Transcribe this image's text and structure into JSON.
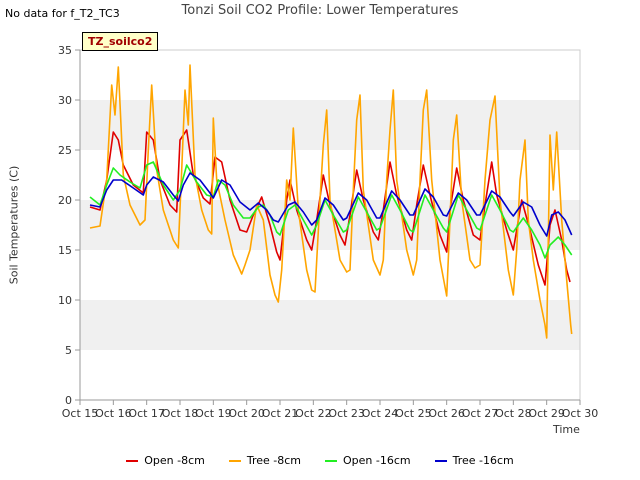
{
  "no_data_text": "No data for f_T2_TC3",
  "tz_label": "TZ_soilco2",
  "colors": {
    "open8": "#e00000",
    "tree8": "#ffa500",
    "open16": "#22ee22",
    "tree16": "#0000cc",
    "band": "#f0f0f0",
    "axis": "#999999"
  },
  "chart_data": {
    "type": "line",
    "title": "Tonzi Soil CO2 Profile: Lower Temperatures",
    "xlabel": "Time",
    "ylabel": "Soil Temperatures (C)",
    "xlim": [
      15,
      30
    ],
    "ylim": [
      0,
      35
    ],
    "x_ticks": [
      "Oct 15",
      "Oct 16",
      "Oct 17",
      "Oct 18",
      "Oct 19",
      "Oct 20",
      "Oct 21",
      "Oct 22",
      "Oct 23",
      "Oct 24",
      "Oct 25",
      "Oct 26",
      "Oct 27",
      "Oct 28",
      "Oct 29",
      "Oct 30"
    ],
    "y_ticks": [
      0,
      5,
      10,
      15,
      20,
      25,
      30,
      35
    ],
    "legend_position": "bottom",
    "series": [
      {
        "name": "Open -8cm",
        "color_key": "open8",
        "points": [
          [
            15.3,
            19.3
          ],
          [
            15.6,
            19.0
          ],
          [
            15.8,
            22.0
          ],
          [
            16.0,
            26.8
          ],
          [
            16.15,
            26.0
          ],
          [
            16.3,
            23.5
          ],
          [
            16.6,
            21.5
          ],
          [
            16.9,
            20.7
          ],
          [
            17.0,
            26.8
          ],
          [
            17.2,
            26.0
          ],
          [
            17.4,
            22.0
          ],
          [
            17.7,
            19.5
          ],
          [
            17.9,
            18.8
          ],
          [
            18.0,
            26.0
          ],
          [
            18.2,
            27.0
          ],
          [
            18.4,
            22.5
          ],
          [
            18.7,
            20.2
          ],
          [
            18.9,
            19.6
          ],
          [
            19.05,
            24.3
          ],
          [
            19.25,
            23.8
          ],
          [
            19.5,
            20.0
          ],
          [
            19.8,
            17.0
          ],
          [
            20.0,
            16.8
          ],
          [
            20.2,
            18.5
          ],
          [
            20.45,
            20.3
          ],
          [
            20.7,
            17.5
          ],
          [
            20.9,
            14.8
          ],
          [
            21.0,
            14.0
          ],
          [
            21.2,
            20.0
          ],
          [
            21.3,
            22.0
          ],
          [
            21.5,
            19.0
          ],
          [
            21.8,
            16.0
          ],
          [
            21.95,
            15.0
          ],
          [
            22.1,
            18.0
          ],
          [
            22.3,
            22.5
          ],
          [
            22.5,
            19.5
          ],
          [
            22.8,
            16.5
          ],
          [
            22.95,
            15.5
          ],
          [
            23.1,
            18.5
          ],
          [
            23.3,
            23.0
          ],
          [
            23.5,
            20.0
          ],
          [
            23.8,
            16.8
          ],
          [
            23.95,
            16.0
          ],
          [
            24.1,
            19.0
          ],
          [
            24.3,
            23.8
          ],
          [
            24.5,
            20.5
          ],
          [
            24.8,
            17.0
          ],
          [
            24.95,
            16.0
          ],
          [
            25.1,
            19.5
          ],
          [
            25.3,
            23.5
          ],
          [
            25.5,
            20.5
          ],
          [
            25.8,
            16.5
          ],
          [
            26.0,
            14.8
          ],
          [
            26.1,
            19.0
          ],
          [
            26.3,
            23.2
          ],
          [
            26.5,
            20.0
          ],
          [
            26.8,
            16.5
          ],
          [
            27.0,
            16.0
          ],
          [
            27.15,
            19.5
          ],
          [
            27.35,
            23.8
          ],
          [
            27.5,
            20.5
          ],
          [
            27.8,
            17.0
          ],
          [
            28.0,
            15.0
          ],
          [
            28.1,
            17.0
          ],
          [
            28.25,
            20.0
          ],
          [
            28.5,
            17.0
          ],
          [
            28.75,
            13.5
          ],
          [
            28.95,
            11.5
          ],
          [
            29.1,
            17.5
          ],
          [
            29.25,
            19.0
          ],
          [
            29.45,
            16.0
          ],
          [
            29.6,
            13.0
          ],
          [
            29.7,
            11.8
          ]
        ]
      },
      {
        "name": "Tree -8cm",
        "color_key": "tree8",
        "points": [
          [
            15.3,
            17.2
          ],
          [
            15.6,
            17.4
          ],
          [
            15.8,
            22.0
          ],
          [
            15.95,
            31.5
          ],
          [
            16.05,
            28.5
          ],
          [
            16.15,
            33.3
          ],
          [
            16.3,
            22.5
          ],
          [
            16.5,
            19.5
          ],
          [
            16.8,
            17.5
          ],
          [
            16.95,
            18.0
          ],
          [
            17.05,
            25.0
          ],
          [
            17.15,
            31.5
          ],
          [
            17.3,
            23.0
          ],
          [
            17.5,
            19.0
          ],
          [
            17.8,
            16.0
          ],
          [
            17.95,
            15.2
          ],
          [
            18.05,
            23.0
          ],
          [
            18.15,
            31.0
          ],
          [
            18.25,
            27.5
          ],
          [
            18.3,
            33.5
          ],
          [
            18.45,
            22.5
          ],
          [
            18.65,
            19.0
          ],
          [
            18.85,
            17.0
          ],
          [
            18.95,
            16.6
          ],
          [
            19.0,
            28.2
          ],
          [
            19.1,
            22.0
          ],
          [
            19.35,
            18.0
          ],
          [
            19.6,
            14.5
          ],
          [
            19.85,
            12.6
          ],
          [
            19.95,
            13.5
          ],
          [
            20.1,
            15.0
          ],
          [
            20.3,
            19.5
          ],
          [
            20.5,
            18.0
          ],
          [
            20.7,
            12.5
          ],
          [
            20.85,
            10.5
          ],
          [
            20.95,
            9.8
          ],
          [
            21.05,
            13.0
          ],
          [
            21.2,
            22.0
          ],
          [
            21.3,
            20.0
          ],
          [
            21.4,
            27.2
          ],
          [
            21.55,
            19.0
          ],
          [
            21.8,
            13.0
          ],
          [
            21.95,
            11.0
          ],
          [
            22.05,
            10.8
          ],
          [
            22.2,
            20.0
          ],
          [
            22.3,
            25.5
          ],
          [
            22.4,
            29.0
          ],
          [
            22.5,
            20.0
          ],
          [
            22.8,
            14.0
          ],
          [
            23.0,
            12.8
          ],
          [
            23.1,
            13.0
          ],
          [
            23.2,
            21.0
          ],
          [
            23.3,
            28.0
          ],
          [
            23.4,
            30.5
          ],
          [
            23.5,
            21.0
          ],
          [
            23.8,
            14.0
          ],
          [
            24.0,
            12.5
          ],
          [
            24.1,
            14.0
          ],
          [
            24.2,
            22.0
          ],
          [
            24.3,
            27.0
          ],
          [
            24.4,
            31.0
          ],
          [
            24.5,
            22.0
          ],
          [
            24.8,
            15.0
          ],
          [
            25.0,
            12.5
          ],
          [
            25.1,
            14.0
          ],
          [
            25.2,
            22.0
          ],
          [
            25.3,
            29.0
          ],
          [
            25.4,
            31.0
          ],
          [
            25.55,
            22.0
          ],
          [
            25.8,
            14.0
          ],
          [
            26.0,
            10.4
          ],
          [
            26.1,
            18.0
          ],
          [
            26.2,
            26.0
          ],
          [
            26.3,
            28.5
          ],
          [
            26.45,
            20.0
          ],
          [
            26.7,
            14.0
          ],
          [
            26.85,
            13.2
          ],
          [
            27.0,
            13.5
          ],
          [
            27.15,
            22.0
          ],
          [
            27.3,
            28.0
          ],
          [
            27.45,
            30.4
          ],
          [
            27.6,
            20.0
          ],
          [
            27.85,
            13.0
          ],
          [
            28.0,
            10.5
          ],
          [
            28.1,
            15.0
          ],
          [
            28.2,
            22.0
          ],
          [
            28.35,
            26.0
          ],
          [
            28.45,
            18.0
          ],
          [
            28.6,
            14.0
          ],
          [
            28.8,
            10.0
          ],
          [
            28.95,
            7.5
          ],
          [
            29.0,
            6.2
          ],
          [
            29.1,
            26.5
          ],
          [
            29.2,
            21.0
          ],
          [
            29.3,
            26.8
          ],
          [
            29.45,
            18.0
          ],
          [
            29.6,
            12.0
          ],
          [
            29.72,
            7.5
          ],
          [
            29.75,
            6.6
          ]
        ]
      },
      {
        "name": "Open -16cm",
        "color_key": "open16",
        "points": [
          [
            15.3,
            20.3
          ],
          [
            15.6,
            19.5
          ],
          [
            15.8,
            21.5
          ],
          [
            16.0,
            23.2
          ],
          [
            16.2,
            22.5
          ],
          [
            16.5,
            21.8
          ],
          [
            16.8,
            21.2
          ],
          [
            17.0,
            23.5
          ],
          [
            17.2,
            23.8
          ],
          [
            17.5,
            21.5
          ],
          [
            17.8,
            20.0
          ],
          [
            18.0,
            21.0
          ],
          [
            18.2,
            23.5
          ],
          [
            18.5,
            21.8
          ],
          [
            18.8,
            20.5
          ],
          [
            19.0,
            20.3
          ],
          [
            19.15,
            22.0
          ],
          [
            19.35,
            21.5
          ],
          [
            19.6,
            19.5
          ],
          [
            19.9,
            18.2
          ],
          [
            20.1,
            18.2
          ],
          [
            20.35,
            19.3
          ],
          [
            20.5,
            19.5
          ],
          [
            20.7,
            18.5
          ],
          [
            20.9,
            16.8
          ],
          [
            21.0,
            16.5
          ],
          [
            21.25,
            19.0
          ],
          [
            21.45,
            19.5
          ],
          [
            21.7,
            18.0
          ],
          [
            21.95,
            16.5
          ],
          [
            22.1,
            17.5
          ],
          [
            22.35,
            20.0
          ],
          [
            22.6,
            18.5
          ],
          [
            22.9,
            16.8
          ],
          [
            23.0,
            17.0
          ],
          [
            23.35,
            20.3
          ],
          [
            23.6,
            18.8
          ],
          [
            23.9,
            17.0
          ],
          [
            24.0,
            17.2
          ],
          [
            24.35,
            20.5
          ],
          [
            24.6,
            19.0
          ],
          [
            24.9,
            17.0
          ],
          [
            25.0,
            16.8
          ],
          [
            25.35,
            20.5
          ],
          [
            25.6,
            19.0
          ],
          [
            25.9,
            17.2
          ],
          [
            26.0,
            16.8
          ],
          [
            26.35,
            20.5
          ],
          [
            26.6,
            19.0
          ],
          [
            26.9,
            17.2
          ],
          [
            27.0,
            17.0
          ],
          [
            27.35,
            20.5
          ],
          [
            27.6,
            19.0
          ],
          [
            27.9,
            17.0
          ],
          [
            28.0,
            16.8
          ],
          [
            28.3,
            18.2
          ],
          [
            28.55,
            17.0
          ],
          [
            28.8,
            15.5
          ],
          [
            28.95,
            14.2
          ],
          [
            29.1,
            15.5
          ],
          [
            29.35,
            16.3
          ],
          [
            29.55,
            15.5
          ],
          [
            29.75,
            14.5
          ]
        ]
      },
      {
        "name": "Tree -16cm",
        "color_key": "tree16",
        "points": [
          [
            15.3,
            19.5
          ],
          [
            15.6,
            19.3
          ],
          [
            15.8,
            21.0
          ],
          [
            16.0,
            22.0
          ],
          [
            16.25,
            22.0
          ],
          [
            16.6,
            21.2
          ],
          [
            16.9,
            20.5
          ],
          [
            17.0,
            21.5
          ],
          [
            17.2,
            22.3
          ],
          [
            17.5,
            21.8
          ],
          [
            17.8,
            20.5
          ],
          [
            17.95,
            19.9
          ],
          [
            18.1,
            21.5
          ],
          [
            18.3,
            22.7
          ],
          [
            18.6,
            22.0
          ],
          [
            18.9,
            20.7
          ],
          [
            19.0,
            20.2
          ],
          [
            19.25,
            22.0
          ],
          [
            19.5,
            21.5
          ],
          [
            19.8,
            19.8
          ],
          [
            20.1,
            19.0
          ],
          [
            20.35,
            19.7
          ],
          [
            20.6,
            19.0
          ],
          [
            20.8,
            18.0
          ],
          [
            20.95,
            17.8
          ],
          [
            21.25,
            19.5
          ],
          [
            21.45,
            19.8
          ],
          [
            21.7,
            18.8
          ],
          [
            21.95,
            17.5
          ],
          [
            22.1,
            18.0
          ],
          [
            22.35,
            20.2
          ],
          [
            22.6,
            19.5
          ],
          [
            22.9,
            18.0
          ],
          [
            23.0,
            18.2
          ],
          [
            23.35,
            20.7
          ],
          [
            23.6,
            20.0
          ],
          [
            23.9,
            18.2
          ],
          [
            24.0,
            18.2
          ],
          [
            24.35,
            20.9
          ],
          [
            24.6,
            20.0
          ],
          [
            24.9,
            18.5
          ],
          [
            25.0,
            18.5
          ],
          [
            25.35,
            21.1
          ],
          [
            25.6,
            20.3
          ],
          [
            25.9,
            18.5
          ],
          [
            26.0,
            18.4
          ],
          [
            26.35,
            20.7
          ],
          [
            26.6,
            20.0
          ],
          [
            26.9,
            18.5
          ],
          [
            27.0,
            18.5
          ],
          [
            27.35,
            20.9
          ],
          [
            27.6,
            20.3
          ],
          [
            27.9,
            18.8
          ],
          [
            28.0,
            18.4
          ],
          [
            28.3,
            19.8
          ],
          [
            28.55,
            19.3
          ],
          [
            28.8,
            17.5
          ],
          [
            29.0,
            16.4
          ],
          [
            29.15,
            18.5
          ],
          [
            29.35,
            18.8
          ],
          [
            29.55,
            18.0
          ],
          [
            29.75,
            16.5
          ]
        ]
      }
    ]
  }
}
